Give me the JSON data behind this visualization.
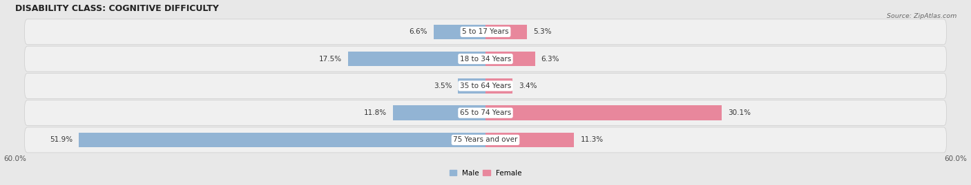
{
  "title": "DISABILITY CLASS: COGNITIVE DIFFICULTY",
  "source": "Source: ZipAtlas.com",
  "age_groups": [
    "5 to 17 Years",
    "18 to 34 Years",
    "35 to 64 Years",
    "65 to 74 Years",
    "75 Years and over"
  ],
  "male_values": [
    6.6,
    17.5,
    3.5,
    11.8,
    51.9
  ],
  "female_values": [
    5.3,
    6.3,
    3.4,
    30.1,
    11.3
  ],
  "male_color": "#92b4d4",
  "female_color": "#e8879c",
  "male_label": "Male",
  "female_label": "Female",
  "axis_max": 60.0,
  "bar_height": 0.55,
  "bg_color": "#e8e8e8",
  "row_bg_color": "#f0f0f0",
  "title_fontsize": 9,
  "label_fontsize": 7.5,
  "tick_fontsize": 7.5
}
